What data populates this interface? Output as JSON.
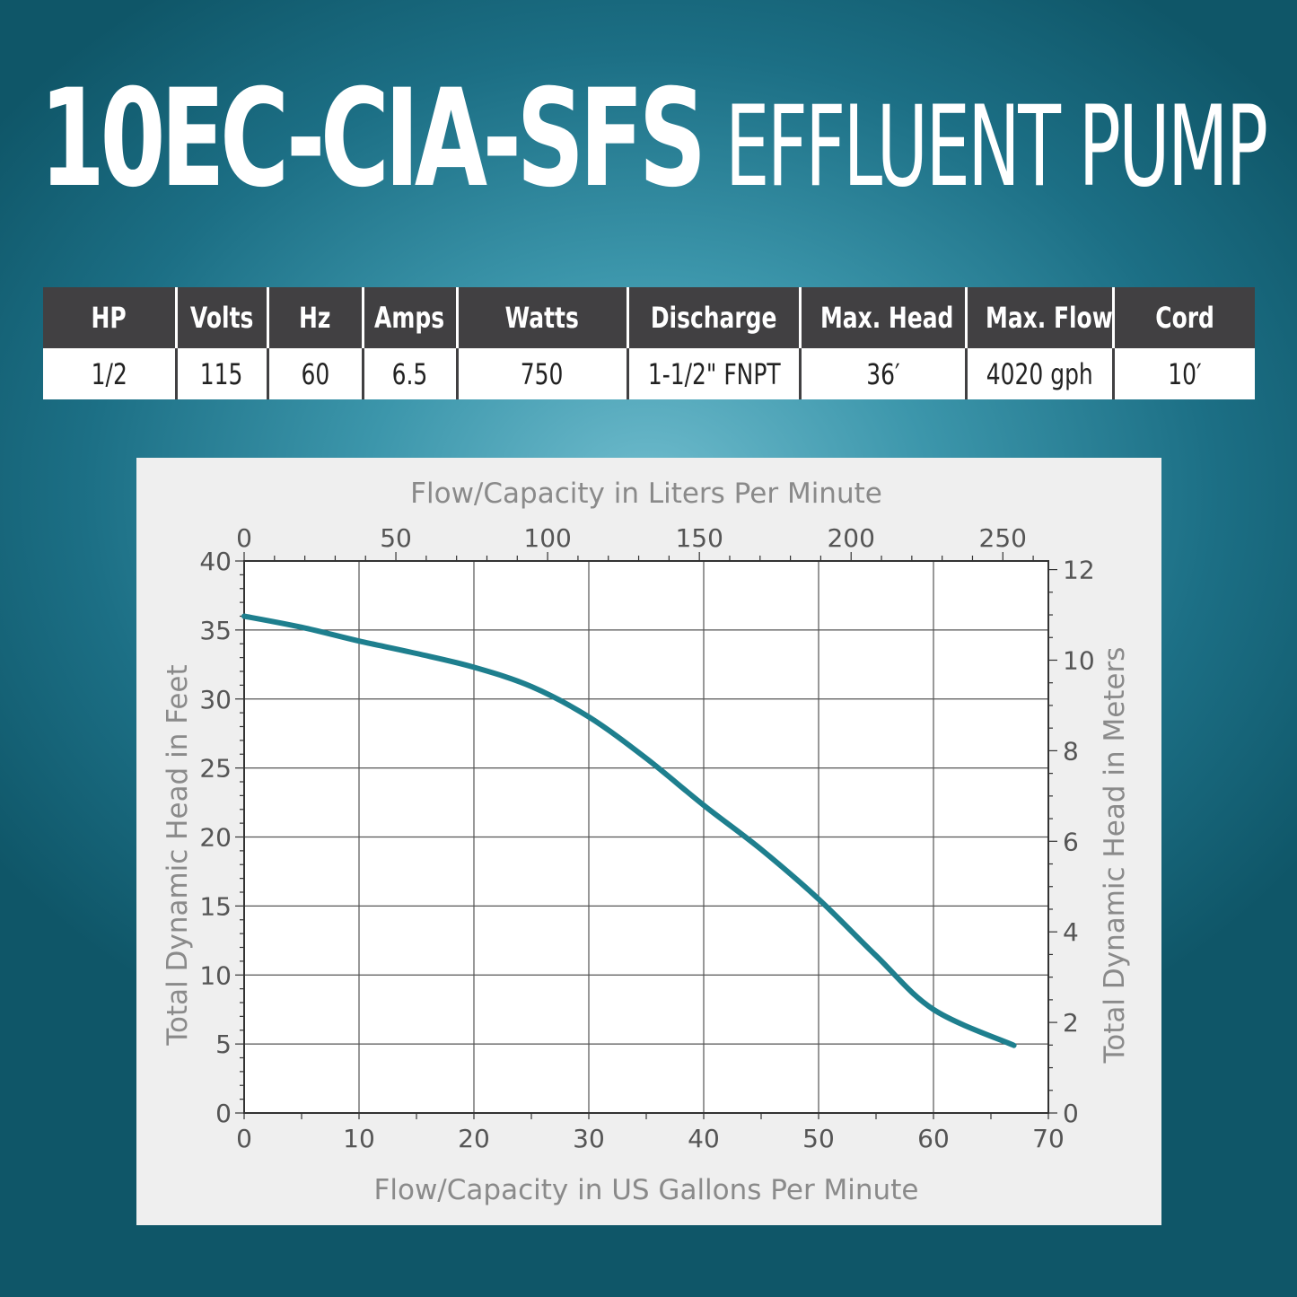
{
  "header": {
    "model": "10EC-CIA-SFS",
    "description": "EFFLUENT PUMP"
  },
  "specs": {
    "headers": [
      "HP",
      "Volts",
      "Hz",
      "Amps",
      "Watts",
      "Discharge",
      "Max. Head",
      "Max. Flow",
      "Cord"
    ],
    "values": [
      "1/2",
      "115",
      "60",
      "6.5",
      "750",
      "1-1/2\" FNPT",
      "36′",
      "4020 gph",
      "10′"
    ]
  },
  "colors": {
    "curve": "#1e7f8e",
    "table_header_bg": "#414042"
  },
  "chart_data": {
    "type": "line",
    "x_label": "Flow/Capacity in US Gallons Per Minute",
    "x2_label": "Flow/Capacity in Liters Per Minute",
    "y_label": "Total Dynamic Head in Feet",
    "y2_label": "Total Dynamic Head in Meters",
    "xlim": [
      0,
      70
    ],
    "ylim": [
      0,
      40
    ],
    "x2lim": [
      0,
      265
    ],
    "y2lim": [
      0,
      12.19
    ],
    "x_ticks": [
      0,
      10,
      20,
      30,
      40,
      50,
      60,
      70
    ],
    "y_ticks": [
      0,
      5,
      10,
      15,
      20,
      25,
      30,
      35,
      40
    ],
    "x2_ticks": [
      0,
      50,
      100,
      150,
      200,
      250
    ],
    "y2_ticks": [
      0,
      2,
      4,
      6,
      8,
      10,
      12
    ],
    "grid": true,
    "series": [
      {
        "x": [
          0,
          5,
          10,
          15,
          20,
          25,
          30,
          35,
          40,
          45,
          50,
          55,
          60,
          67
        ],
        "y": [
          36,
          35.2,
          34.2,
          33.3,
          32.3,
          30.9,
          28.7,
          25.7,
          22.3,
          19.1,
          15.5,
          11.4,
          7.5,
          4.9
        ]
      }
    ]
  }
}
